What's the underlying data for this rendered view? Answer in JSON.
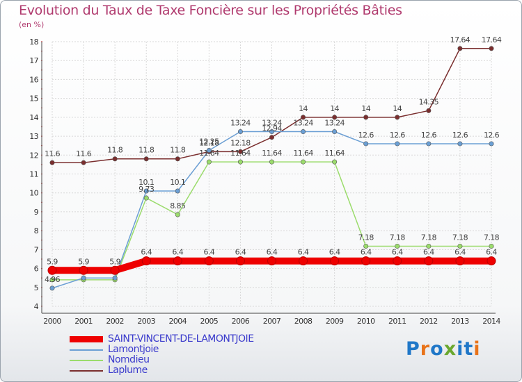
{
  "title": "Evolution du Taux de Taxe Foncière sur les Propriétés Bâties",
  "subtitle": "(en %)",
  "logo": {
    "text": "Proxiti",
    "colors": [
      "#1f77c8",
      "#e8731a",
      "#1f77c8",
      "#6aa82f",
      "#1f77c8",
      "#1f77c8",
      "#e8731a"
    ]
  },
  "chart_data": {
    "type": "line",
    "title": "Evolution du Taux de Taxe Foncière sur les Propriétés Bâties",
    "ylabel": "(en %)",
    "xlabel": "",
    "ylim": [
      4,
      18
    ],
    "yticks": [
      4,
      5,
      6,
      7,
      8,
      9,
      10,
      11,
      12,
      13,
      14,
      15,
      16,
      17,
      18
    ],
    "x": [
      "2000",
      "2001",
      "2002",
      "2003",
      "2004",
      "2005",
      "2006",
      "2007",
      "2008",
      "2009",
      "2010",
      "2011",
      "2012",
      "2013",
      "2014"
    ],
    "series": [
      {
        "name": "SAINT-VINCENT-DE-LAMONTJOIE",
        "color": "#ee0000",
        "labelColor": "#3a3acc",
        "values": [
          5.9,
          5.9,
          5.9,
          6.4,
          6.4,
          6.4,
          6.4,
          6.4,
          6.4,
          6.4,
          6.4,
          6.4,
          6.4,
          6.4,
          6.4
        ],
        "labels": [
          "5.9",
          "5.9",
          "5.9",
          "6.4",
          "6.4",
          "6.4",
          "6.4",
          "6.4",
          "6.4",
          "6.4",
          "6.4",
          "6.4",
          "6.4",
          "6.4",
          "6.4"
        ]
      },
      {
        "name": "Lamontjoie",
        "color": "#6b9fd4",
        "labelColor": "#3a3acc",
        "values": [
          4.96,
          5.5,
          5.5,
          10.1,
          10.1,
          12.25,
          13.24,
          13.24,
          13.24,
          13.24,
          12.6,
          12.6,
          12.6,
          12.6,
          12.6
        ],
        "labels": [
          "4.96",
          "",
          "",
          "10.1",
          "10.1",
          "12.25",
          "13.24",
          "13.24",
          "13.24",
          "13.24",
          "12.6",
          "12.6",
          "12.6",
          "12.6",
          "12.6"
        ]
      },
      {
        "name": "Nomdieu",
        "color": "#9bdc6c",
        "labelColor": "#3a3acc",
        "values": [
          5.4,
          5.4,
          5.4,
          9.73,
          8.85,
          11.64,
          11.64,
          11.64,
          11.64,
          11.64,
          7.18,
          7.18,
          7.18,
          7.18,
          7.18
        ],
        "labels": [
          "",
          "",
          "",
          "9.73",
          "8.85",
          "11.64",
          "11.64",
          "11.64",
          "11.64",
          "11.64",
          "7.18",
          "7.18",
          "7.18",
          "7.18",
          "7.18"
        ]
      },
      {
        "name": "Laplume",
        "color": "#7a2e2e",
        "labelColor": "#3a3acc",
        "values": [
          11.6,
          11.6,
          11.8,
          11.8,
          11.8,
          12.18,
          12.18,
          12.94,
          14,
          14,
          14,
          14,
          14.35,
          17.64,
          17.64
        ],
        "labels": [
          "11.6",
          "11.6",
          "11.8",
          "11.8",
          "11.8",
          "12.18",
          "12.18",
          "12.94",
          "14",
          "14",
          "14",
          "14",
          "14.35",
          "17.64",
          "17.64"
        ]
      }
    ]
  }
}
